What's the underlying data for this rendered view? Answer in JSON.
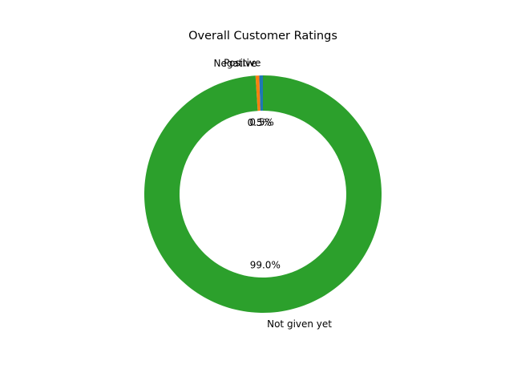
{
  "chart_data": {
    "type": "pie",
    "donut": true,
    "title": "Overall Customer Ratings",
    "slices": [
      {
        "label": "Positive",
        "value": 0.5,
        "pct_label": "0.5%",
        "color": "#1f77b4"
      },
      {
        "label": "Negative",
        "value": 0.5,
        "pct_label": "0.5%",
        "color": "#ff7f0e"
      },
      {
        "label": "Not given yet",
        "value": 99.0,
        "pct_label": "99.0%",
        "color": "#2ca02c"
      }
    ],
    "start_angle_deg": 90,
    "counterclockwise": true
  }
}
